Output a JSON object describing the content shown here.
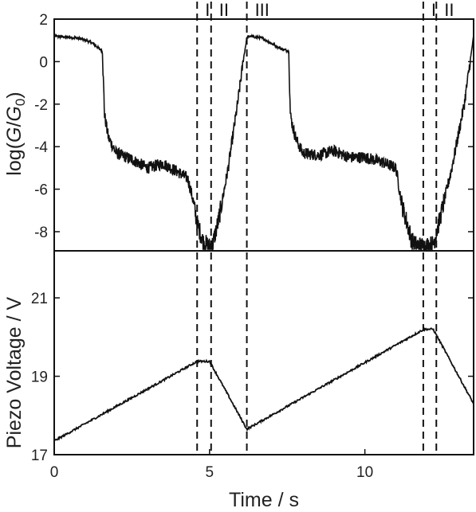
{
  "chart_data": [
    {
      "type": "line",
      "panel": "top",
      "ylabel": "log(G/G0)",
      "ylabel_parts": {
        "prefix": "log(",
        "G": "G",
        "slash": "/",
        "G0": "G",
        "sub": "0",
        "suffix": ")"
      },
      "xlim": [
        0,
        13.5
      ],
      "ylim": [
        -8.9,
        2
      ],
      "yticks": [
        2,
        0,
        -2,
        -4,
        -6,
        -8
      ],
      "ytick_labels": [
        "2",
        "0",
        "-2",
        "-4",
        "-6",
        "-8"
      ],
      "grid": false,
      "series": [
        {
          "x": [
            0,
            0.8,
            1.2,
            1.55,
            1.62,
            1.7,
            1.75,
            2.0,
            2.5,
            3.0,
            3.5,
            4.0,
            4.3,
            4.45,
            4.6,
            4.8,
            5.0,
            5.1,
            5.3,
            5.6,
            5.9,
            6.1,
            6.2,
            6.3,
            6.7,
            7.3,
            7.55,
            7.6,
            7.7,
            7.8,
            8.0,
            8.5,
            9.0,
            9.5,
            10.0,
            10.5,
            11.0,
            11.2,
            11.4,
            11.5,
            11.6,
            11.9,
            12.2,
            12.4,
            12.8,
            13.2,
            13.5
          ],
          "y": [
            1.2,
            1.1,
            0.9,
            0.5,
            -2.5,
            -3.2,
            -3.6,
            -4.3,
            -4.6,
            -5.0,
            -4.8,
            -5.2,
            -5.5,
            -6.4,
            -7.6,
            -8.5,
            -8.7,
            -8.6,
            -7.4,
            -5.0,
            -2.0,
            0.2,
            1.1,
            1.2,
            1.1,
            0.6,
            0.5,
            -2.5,
            -3.2,
            -3.7,
            -4.3,
            -4.4,
            -4.2,
            -4.5,
            -4.5,
            -4.7,
            -5.0,
            -6.8,
            -7.8,
            -8.4,
            -8.6,
            -8.7,
            -8.6,
            -7.5,
            -5.0,
            -2.0,
            1.2
          ]
        }
      ]
    },
    {
      "type": "line",
      "panel": "bottom",
      "ylabel": "Piezo Voltage / V",
      "xlabel": "Time / s",
      "xlim": [
        0,
        13.5
      ],
      "ylim": [
        17,
        22.2
      ],
      "yticks": [
        17,
        19,
        21
      ],
      "ytick_labels": [
        "17",
        "19",
        "21"
      ],
      "xticks": [
        0,
        5,
        10
      ],
      "xtick_labels": [
        "0",
        "5",
        "10"
      ],
      "grid": false,
      "series": [
        {
          "x": [
            0,
            4.6,
            5.0,
            6.2,
            11.9,
            12.2,
            13.5
          ],
          "y": [
            17.35,
            19.38,
            19.38,
            17.65,
            20.2,
            20.2,
            18.3
          ]
        }
      ]
    }
  ],
  "markers": [
    {
      "x": 4.6,
      "region": "I"
    },
    {
      "x": 5.05,
      "region": "II"
    },
    {
      "x": 6.2,
      "region": "III"
    },
    {
      "x": 11.88,
      "region": "I"
    },
    {
      "x": 12.3,
      "region": "II"
    }
  ],
  "region_labels": [
    "I",
    "II",
    "III",
    "I",
    "II"
  ]
}
